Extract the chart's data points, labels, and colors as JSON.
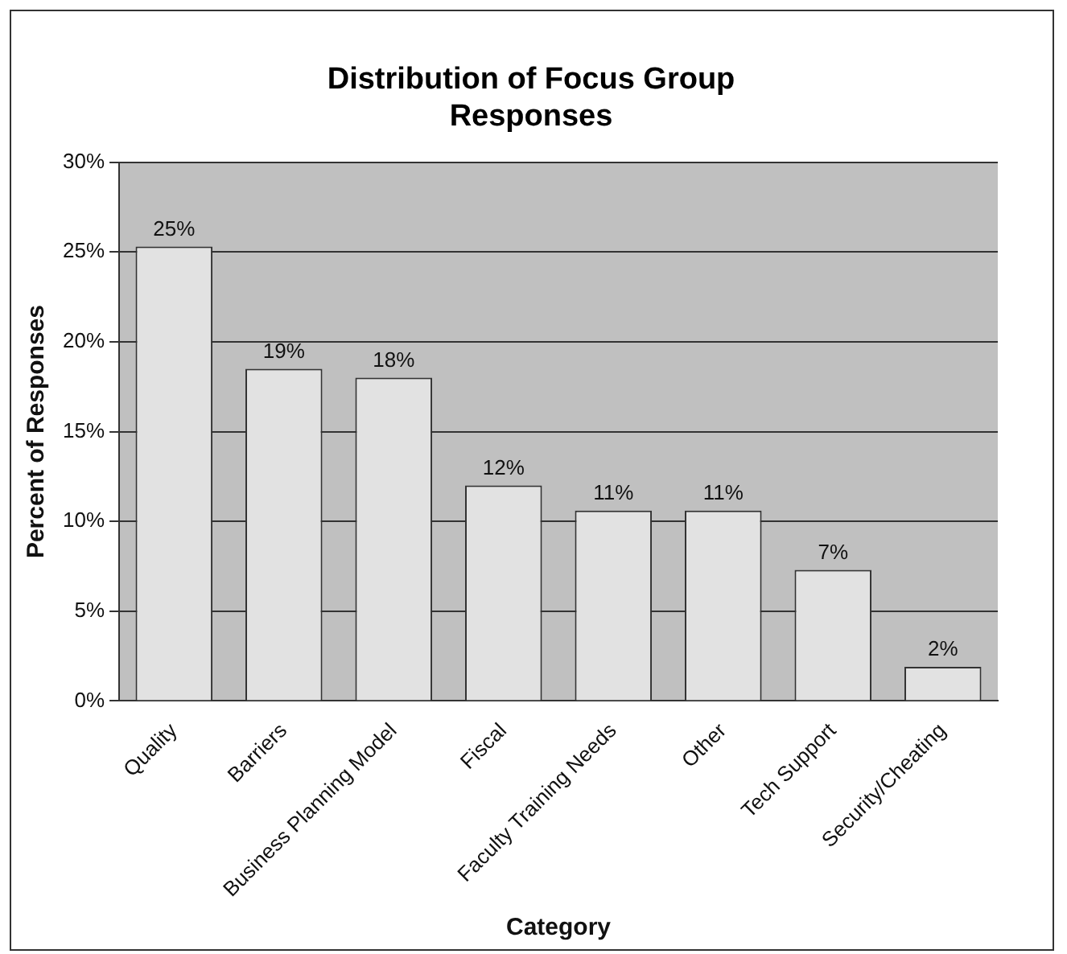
{
  "chart_data": {
    "type": "bar",
    "title": "Distribution of Focus Group Responses",
    "xlabel": "Category",
    "ylabel": "Percent of Responses",
    "categories": [
      "Quality",
      "Barriers",
      "Business Planning Model",
      "Fiscal",
      "Faculty Training Needs",
      "Other",
      "Tech Support",
      "Security/Cheating"
    ],
    "values": [
      25.3,
      18.5,
      18,
      12,
      10.6,
      10.6,
      7.3,
      1.9
    ],
    "value_labels": [
      "25%",
      "19%",
      "18%",
      "12%",
      "11%",
      "11%",
      "7%",
      "2%"
    ],
    "color": "#e2e2e2",
    "ylim": [
      0,
      30
    ],
    "yticks": [
      {
        "value": 0,
        "label": "0%"
      },
      {
        "value": 5,
        "label": "5%"
      },
      {
        "value": 10,
        "label": "10%"
      },
      {
        "value": 15,
        "label": "15%"
      },
      {
        "value": 20,
        "label": "20%"
      },
      {
        "value": 25,
        "label": "25%"
      },
      {
        "value": 30,
        "label": "30%"
      }
    ],
    "grid": "y",
    "legend": false
  }
}
